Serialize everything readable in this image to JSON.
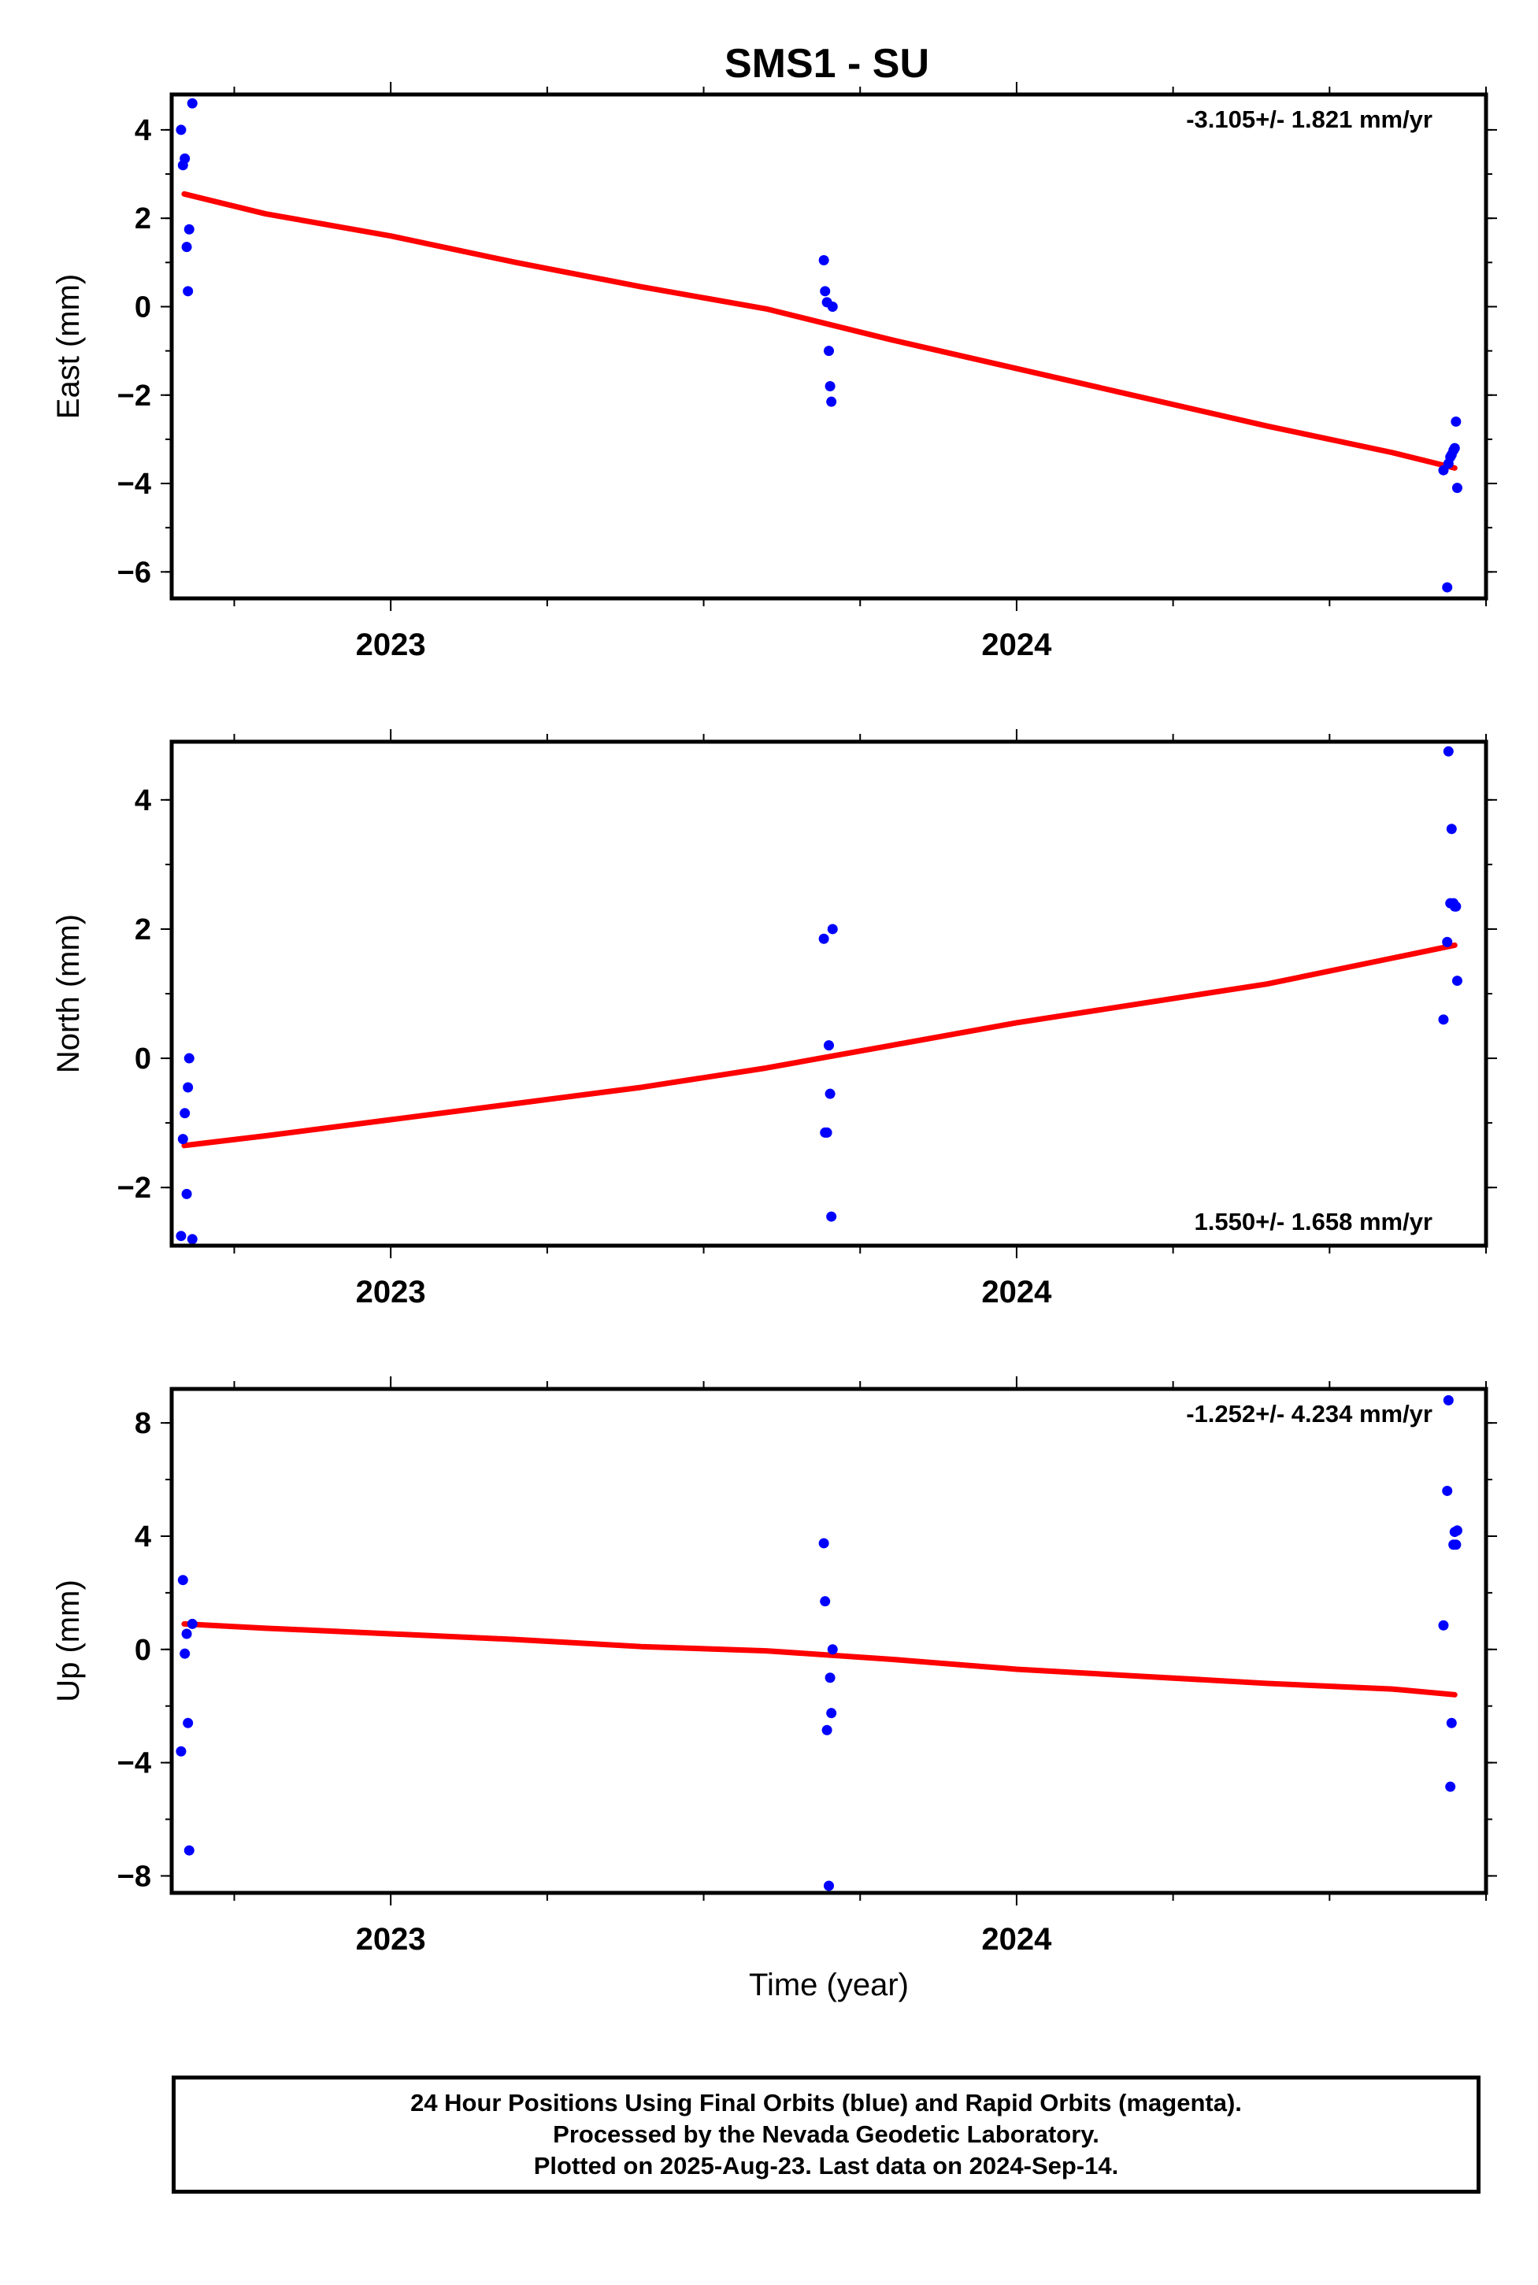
{
  "title": "SMS1 - SU",
  "footer": {
    "line1": "24 Hour Positions Using Final Orbits (blue) and Rapid Orbits (magenta).",
    "line2": "Processed by the Nevada Geodetic Laboratory.",
    "line3": "Plotted on 2025-Aug-23. Last data on 2024-Sep-14."
  },
  "colors": {
    "points": "#0000ff",
    "trend": "#ff0000",
    "frame": "#000000"
  },
  "chart_data": [
    {
      "type": "scatter",
      "component": "east",
      "ylabel": "East (mm)",
      "xlabel": "",
      "xlim": [
        2022.65,
        2024.75
      ],
      "ylim": [
        -6.6,
        4.8
      ],
      "yticks": [
        -6,
        -4,
        -2,
        0,
        2,
        4
      ],
      "yticklabels": [
        "−6",
        "−4",
        "−2",
        "0",
        "2",
        "4"
      ],
      "xticks": [
        2023,
        2024
      ],
      "xticklabels": [
        "2023",
        "2024"
      ],
      "grid": false,
      "annotation": "-3.105+/- 1.821 mm/yr",
      "annotation_position": "top-right",
      "points": {
        "x": [
          2022.665,
          2022.668,
          2022.671,
          2022.674,
          2022.676,
          2022.678,
          2022.683,
          2023.692,
          2023.694,
          2023.697,
          2023.7,
          2023.702,
          2023.704,
          2023.706,
          2024.682,
          2024.688,
          2024.69,
          2024.693,
          2024.695,
          2024.698,
          2024.7,
          2024.702,
          2024.704
        ],
        "y": [
          4.0,
          3.2,
          3.35,
          1.35,
          0.35,
          1.75,
          4.6,
          1.05,
          0.35,
          0.1,
          -1.0,
          -1.8,
          -2.15,
          0.0,
          -3.7,
          -6.35,
          -3.55,
          -3.4,
          -3.35,
          -3.25,
          -3.2,
          -2.6,
          -4.1
        ]
      },
      "trend": {
        "x": [
          2022.67,
          2022.8,
          2023.0,
          2023.2,
          2023.4,
          2023.6,
          2023.8,
          2024.0,
          2024.2,
          2024.4,
          2024.6,
          2024.7
        ],
        "y": [
          2.55,
          2.1,
          1.6,
          1.0,
          0.45,
          -0.05,
          -0.75,
          -1.4,
          -2.05,
          -2.7,
          -3.3,
          -3.65
        ]
      },
      "trend_rate": "-3.105+/- 1.821 mm/yr"
    },
    {
      "type": "scatter",
      "component": "north",
      "ylabel": "North (mm)",
      "xlabel": "",
      "xlim": [
        2022.65,
        2024.75
      ],
      "ylim": [
        -2.9,
        4.9
      ],
      "yticks": [
        -2,
        0,
        2,
        4
      ],
      "yticklabels": [
        "−2",
        "0",
        "2",
        "4"
      ],
      "xticks": [
        2023,
        2024
      ],
      "xticklabels": [
        "2023",
        "2024"
      ],
      "grid": false,
      "annotation": "1.550+/- 1.658 mm/yr",
      "annotation_position": "bottom-right",
      "points": {
        "x": [
          2022.665,
          2022.668,
          2022.671,
          2022.674,
          2022.676,
          2022.678,
          2022.683,
          2023.692,
          2023.694,
          2023.697,
          2023.7,
          2023.702,
          2023.704,
          2023.706,
          2024.682,
          2024.688,
          2024.69,
          2024.693,
          2024.695,
          2024.698,
          2024.7,
          2024.702,
          2024.704
        ],
        "y": [
          -2.75,
          -1.25,
          -0.85,
          -2.1,
          -0.45,
          0.0,
          -2.8,
          1.85,
          -1.15,
          -1.15,
          0.2,
          -0.55,
          -2.45,
          2.0,
          0.6,
          1.8,
          4.75,
          2.4,
          3.55,
          2.4,
          2.35,
          2.35,
          1.2
        ]
      },
      "trend": {
        "x": [
          2022.67,
          2022.8,
          2023.0,
          2023.2,
          2023.4,
          2023.6,
          2023.8,
          2024.0,
          2024.2,
          2024.4,
          2024.6,
          2024.7
        ],
        "y": [
          -1.35,
          -1.2,
          -0.95,
          -0.7,
          -0.45,
          -0.15,
          0.2,
          0.55,
          0.85,
          1.15,
          1.55,
          1.75
        ]
      },
      "trend_rate": "1.550+/- 1.658 mm/yr"
    },
    {
      "type": "scatter",
      "component": "up",
      "ylabel": "Up (mm)",
      "xlabel": "Time (year)",
      "xlim": [
        2022.65,
        2024.75
      ],
      "ylim": [
        -8.6,
        9.2
      ],
      "yticks": [
        -8,
        -4,
        0,
        4,
        8
      ],
      "yticklabels": [
        "−8",
        "−4",
        "0",
        "4",
        "8"
      ],
      "xticks": [
        2023,
        2024
      ],
      "xticklabels": [
        "2023",
        "2024"
      ],
      "grid": false,
      "annotation": "-1.252+/- 4.234 mm/yr",
      "annotation_position": "top-right",
      "points": {
        "x": [
          2022.665,
          2022.668,
          2022.671,
          2022.674,
          2022.676,
          2022.678,
          2022.683,
          2023.692,
          2023.694,
          2023.697,
          2023.7,
          2023.702,
          2023.704,
          2023.706,
          2024.682,
          2024.688,
          2024.69,
          2024.693,
          2024.695,
          2024.698,
          2024.7,
          2024.702,
          2024.704
        ],
        "y": [
          -3.6,
          2.45,
          -0.15,
          0.55,
          -2.6,
          -7.1,
          0.9,
          3.75,
          1.7,
          -2.85,
          -8.35,
          -1.0,
          -2.25,
          0.0,
          0.85,
          5.6,
          8.8,
          -4.85,
          -2.6,
          3.7,
          4.15,
          3.7,
          4.2
        ]
      },
      "trend": {
        "x": [
          2022.67,
          2022.8,
          2023.0,
          2023.2,
          2023.4,
          2023.6,
          2023.8,
          2024.0,
          2024.2,
          2024.4,
          2024.6,
          2024.7
        ],
        "y": [
          0.9,
          0.75,
          0.55,
          0.35,
          0.1,
          -0.05,
          -0.35,
          -0.7,
          -0.95,
          -1.2,
          -1.4,
          -1.6
        ]
      },
      "trend_rate": "-1.252+/- 4.234 mm/yr"
    }
  ]
}
